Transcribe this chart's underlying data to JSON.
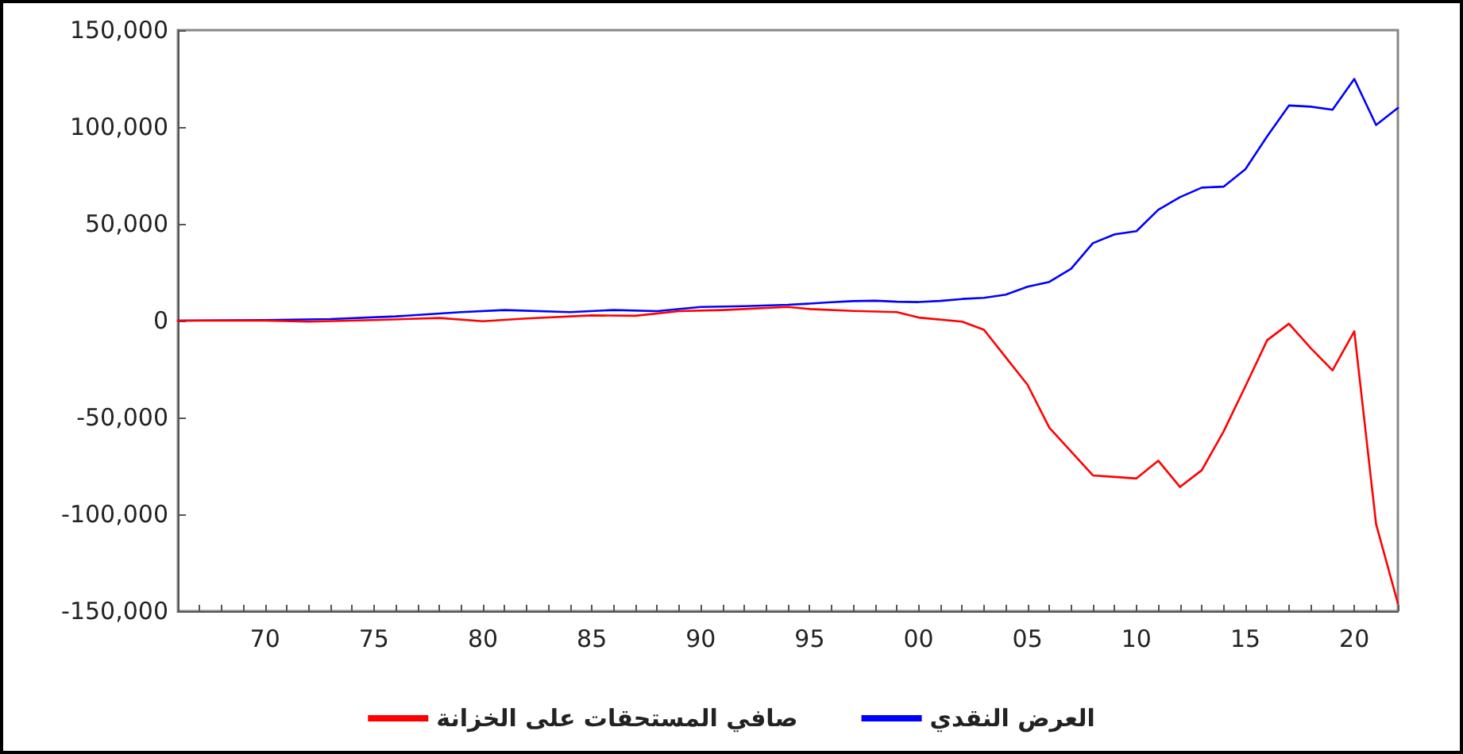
{
  "chart_data": {
    "type": "line",
    "x": [
      1966,
      1970,
      1973,
      1976,
      1979,
      1981,
      1984,
      1986,
      1988,
      1990,
      1992,
      1994,
      1995,
      1996,
      1997,
      1998,
      1999,
      2000,
      2001,
      2002,
      2003,
      2004,
      2005,
      2006,
      2007,
      2008,
      2009,
      2010,
      2011,
      2012,
      2013,
      2014,
      2015,
      2016,
      2017,
      2018,
      2019,
      2020,
      2021,
      2022
    ],
    "series": [
      {
        "name": "العرض النقدي",
        "color": "#0000ff",
        "values": [
          0,
          300,
          800,
          2200,
          4400,
          5500,
          4400,
          5500,
          4900,
          7100,
          7500,
          8200,
          8800,
          9500,
          10100,
          10300,
          9800,
          9600,
          10200,
          11200,
          11800,
          13400,
          17500,
          20000,
          26800,
          40000,
          44600,
          46200,
          57200,
          63800,
          68700,
          69200,
          78200,
          95200,
          111100,
          110500,
          108900,
          124800,
          101000,
          109800
        ]
      },
      {
        "name": "صافي المستحقات على الخزانة",
        "color": "#ff0000",
        "x": [
          1966,
          1970,
          1972,
          1975,
          1978,
          1980,
          1982,
          1985,
          1987,
          1989,
          1991,
          1994,
          1995,
          1997,
          1999,
          2000,
          2002,
          2003,
          2004,
          2005,
          2006,
          2007,
          2008,
          2009,
          2010,
          2011,
          2012,
          2013,
          2014,
          2015,
          2016,
          2017,
          2018,
          2019,
          2020,
          2021,
          2022
        ],
        "values": [
          0,
          0,
          -500,
          300,
          1400,
          -300,
          1100,
          2700,
          2500,
          4900,
          5500,
          7100,
          6000,
          5000,
          4400,
          1600,
          -500,
          -4700,
          -18900,
          -33100,
          -55300,
          -67600,
          -79900,
          -80700,
          -81500,
          -72300,
          -85900,
          -77200,
          -57200,
          -33900,
          -10100,
          -1600,
          -14200,
          -25700,
          -5500,
          -105100,
          -146000
        ]
      }
    ],
    "xlim": [
      1966,
      2022
    ],
    "xticks": [
      {
        "value": 1966,
        "label": null
      },
      {
        "value": 1967,
        "label": null
      },
      {
        "value": 1968,
        "label": null
      },
      {
        "value": 1969,
        "label": null
      },
      {
        "value": 1970,
        "label": "70"
      },
      {
        "value": 1971,
        "label": null
      },
      {
        "value": 1972,
        "label": null
      },
      {
        "value": 1973,
        "label": null
      },
      {
        "value": 1974,
        "label": null
      },
      {
        "value": 1975,
        "label": "75"
      },
      {
        "value": 1976,
        "label": null
      },
      {
        "value": 1977,
        "label": null
      },
      {
        "value": 1978,
        "label": null
      },
      {
        "value": 1979,
        "label": null
      },
      {
        "value": 1980,
        "label": "80"
      },
      {
        "value": 1981,
        "label": null
      },
      {
        "value": 1982,
        "label": null
      },
      {
        "value": 1983,
        "label": null
      },
      {
        "value": 1984,
        "label": null
      },
      {
        "value": 1985,
        "label": "85"
      },
      {
        "value": 1986,
        "label": null
      },
      {
        "value": 1987,
        "label": null
      },
      {
        "value": 1988,
        "label": null
      },
      {
        "value": 1989,
        "label": null
      },
      {
        "value": 1990,
        "label": "90"
      },
      {
        "value": 1991,
        "label": null
      },
      {
        "value": 1992,
        "label": null
      },
      {
        "value": 1993,
        "label": null
      },
      {
        "value": 1994,
        "label": null
      },
      {
        "value": 1995,
        "label": "95"
      },
      {
        "value": 1996,
        "label": null
      },
      {
        "value": 1997,
        "label": null
      },
      {
        "value": 1998,
        "label": null
      },
      {
        "value": 1999,
        "label": null
      },
      {
        "value": 2000,
        "label": "00"
      },
      {
        "value": 2001,
        "label": null
      },
      {
        "value": 2002,
        "label": null
      },
      {
        "value": 2003,
        "label": null
      },
      {
        "value": 2004,
        "label": null
      },
      {
        "value": 2005,
        "label": "05"
      },
      {
        "value": 2006,
        "label": null
      },
      {
        "value": 2007,
        "label": null
      },
      {
        "value": 2008,
        "label": null
      },
      {
        "value": 2009,
        "label": null
      },
      {
        "value": 2010,
        "label": "10"
      },
      {
        "value": 2011,
        "label": null
      },
      {
        "value": 2012,
        "label": null
      },
      {
        "value": 2013,
        "label": null
      },
      {
        "value": 2014,
        "label": null
      },
      {
        "value": 2015,
        "label": "15"
      },
      {
        "value": 2016,
        "label": null
      },
      {
        "value": 2017,
        "label": null
      },
      {
        "value": 2018,
        "label": null
      },
      {
        "value": 2019,
        "label": null
      },
      {
        "value": 2020,
        "label": "20"
      },
      {
        "value": 2021,
        "label": null
      },
      {
        "value": 2022,
        "label": null
      }
    ],
    "ylim": [
      -150000,
      150000
    ],
    "yticks": [
      {
        "value": -150000,
        "label": "-150,000"
      },
      {
        "value": -100000,
        "label": "-100,000"
      },
      {
        "value": -50000,
        "label": "-50,000"
      },
      {
        "value": 0,
        "label": "0"
      },
      {
        "value": 50000,
        "label": "50,000"
      },
      {
        "value": 100000,
        "label": "100,000"
      },
      {
        "value": 150000,
        "label": "150,000"
      }
    ],
    "grid": false,
    "legend": "bottom",
    "marker": "none",
    "line_style": "solid"
  }
}
